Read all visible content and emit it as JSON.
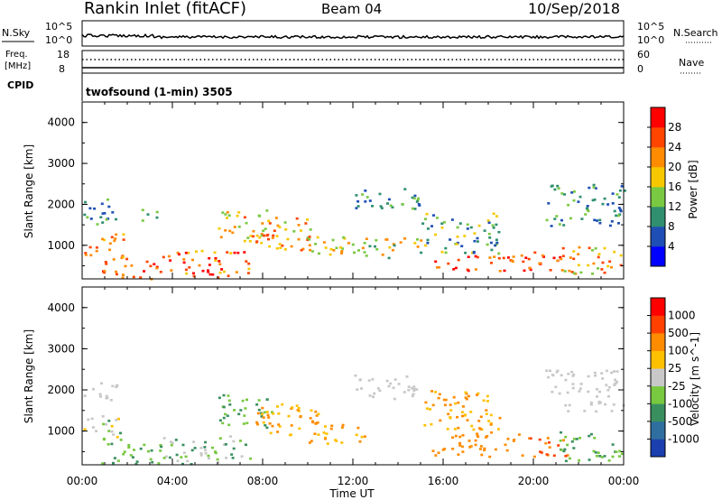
{
  "header": {
    "station": "Rankin Inlet (fitACF)",
    "beam": "Beam 04",
    "date": "10/Sep/2018"
  },
  "status_panels": {
    "nsky_label": "N.Sky",
    "nsky_ticks": [
      "10^5",
      "10^0"
    ],
    "nsearch_label": "N.Search",
    "nsearch_ticks": [
      "10^5",
      "10^0"
    ],
    "freq_label_line1": "Freq.",
    "freq_label_line2": "[MHz]",
    "freq_ticks": [
      "18",
      "8"
    ],
    "nave_label": "Nave",
    "nave_ticks": [
      "60",
      "0"
    ],
    "cpid_label": "CPID",
    "cpid_value": "twofsound (1-min) 3505"
  },
  "chart_data": [
    {
      "type": "heatmap",
      "xlabel": "",
      "ylabel": "Slant Range [km]",
      "yticks": [
        "4000",
        "3000",
        "2000",
        "1000"
      ],
      "ylim": [
        180,
        4500
      ],
      "xlim_hours": [
        0,
        24
      ],
      "colorbar_label": "Power [dB]",
      "colorbar_ticks": [
        "28",
        "24",
        "20",
        "16",
        "12",
        "8",
        "4"
      ],
      "colors": [
        "#0000ff",
        "#1f4fb4",
        "#2f8f6f",
        "#7ac943",
        "#f7c800",
        "#ff8c00",
        "#ff4500",
        "#ff0000"
      ],
      "scatter_regions": [
        {
          "t0": 0.0,
          "t1": 1.9,
          "r0": 700,
          "r1": 1300,
          "band": [
            4,
            6
          ]
        },
        {
          "t0": 0.0,
          "t1": 1.5,
          "r0": 1500,
          "r1": 2200,
          "band": [
            1,
            3
          ]
        },
        {
          "t0": 0.8,
          "t1": 3.5,
          "r0": 200,
          "r1": 700,
          "band": [
            5,
            7
          ]
        },
        {
          "t0": 2.5,
          "t1": 3.3,
          "r0": 1500,
          "r1": 1900,
          "band": [
            1,
            3
          ]
        },
        {
          "t0": 3.5,
          "t1": 7.5,
          "r0": 200,
          "r1": 900,
          "band": [
            4,
            7
          ]
        },
        {
          "t0": 6.0,
          "t1": 8.5,
          "r0": 1100,
          "r1": 1900,
          "band": [
            3,
            6
          ]
        },
        {
          "t0": 7.5,
          "t1": 10.5,
          "r0": 900,
          "r1": 1700,
          "band": [
            3,
            6
          ]
        },
        {
          "t0": 10.0,
          "t1": 12.5,
          "r0": 700,
          "r1": 1300,
          "band": [
            3,
            5
          ]
        },
        {
          "t0": 12.0,
          "t1": 15.0,
          "r0": 1800,
          "r1": 2400,
          "band": [
            1,
            3
          ]
        },
        {
          "t0": 12.5,
          "t1": 15.0,
          "r0": 700,
          "r1": 1200,
          "band": [
            2,
            5
          ]
        },
        {
          "t0": 15.5,
          "t1": 19.5,
          "r0": 400,
          "r1": 800,
          "band": [
            5,
            7
          ]
        },
        {
          "t0": 15.0,
          "t1": 18.5,
          "r0": 800,
          "r1": 1800,
          "band": [
            1,
            4
          ]
        },
        {
          "t0": 19.5,
          "t1": 21.5,
          "r0": 400,
          "r1": 900,
          "band": [
            5,
            7
          ]
        },
        {
          "t0": 20.5,
          "t1": 24.0,
          "r0": 1500,
          "r1": 2500,
          "band": [
            1,
            3
          ]
        },
        {
          "t0": 21.0,
          "t1": 24.0,
          "r0": 300,
          "r1": 1000,
          "band": [
            3,
            6
          ]
        }
      ]
    },
    {
      "type": "heatmap",
      "xlabel": "Time UT",
      "ylabel": "Slant Range [km]",
      "xticks": [
        "00:00",
        "04:00",
        "08:00",
        "12:00",
        "16:00",
        "20:00",
        "00:00"
      ],
      "yticks": [
        "4000",
        "3000",
        "2000",
        "1000"
      ],
      "ylim": [
        180,
        4500
      ],
      "xlim_hours": [
        0,
        24
      ],
      "colorbar_label": "Velocity [m s^-1]",
      "colorbar_ticks": [
        "1000",
        "500",
        "100",
        "25",
        "-25",
        "-100",
        "-500",
        "-1000"
      ],
      "colors": [
        "#1c3fb0",
        "#2f6f9f",
        "#3a8f5f",
        "#78c840",
        "#c8c8c8",
        "#ffc000",
        "#ff8c00",
        "#ff4000",
        "#ff0000"
      ],
      "scatter_regions": [
        {
          "t0": 0.0,
          "t1": 1.9,
          "r0": 700,
          "r1": 1400,
          "band": [
            2,
            6
          ]
        },
        {
          "t0": 0.0,
          "t1": 1.5,
          "r0": 1700,
          "r1": 2200,
          "band": [
            4,
            4
          ]
        },
        {
          "t0": 0.8,
          "t1": 3.5,
          "r0": 200,
          "r1": 700,
          "band": [
            2,
            3
          ]
        },
        {
          "t0": 3.5,
          "t1": 7.5,
          "r0": 200,
          "r1": 900,
          "band": [
            2,
            4
          ]
        },
        {
          "t0": 6.0,
          "t1": 8.5,
          "r0": 1100,
          "r1": 1900,
          "band": [
            2,
            3
          ]
        },
        {
          "t0": 7.5,
          "t1": 10.5,
          "r0": 900,
          "r1": 1700,
          "band": [
            5,
            6
          ]
        },
        {
          "t0": 10.0,
          "t1": 12.5,
          "r0": 700,
          "r1": 1300,
          "band": [
            5,
            6
          ]
        },
        {
          "t0": 12.0,
          "t1": 15.0,
          "r0": 1800,
          "r1": 2400,
          "band": [
            4,
            4
          ]
        },
        {
          "t0": 15.5,
          "t1": 19.5,
          "r0": 400,
          "r1": 1000,
          "band": [
            6,
            6
          ]
        },
        {
          "t0": 15.0,
          "t1": 18.5,
          "r0": 1000,
          "r1": 2000,
          "band": [
            5,
            6
          ]
        },
        {
          "t0": 19.5,
          "t1": 21.5,
          "r0": 400,
          "r1": 900,
          "band": [
            6,
            7
          ]
        },
        {
          "t0": 20.5,
          "t1": 24.0,
          "r0": 1500,
          "r1": 2500,
          "band": [
            4,
            4
          ]
        },
        {
          "t0": 21.0,
          "t1": 24.0,
          "r0": 300,
          "r1": 1000,
          "band": [
            2,
            3
          ]
        }
      ]
    }
  ]
}
